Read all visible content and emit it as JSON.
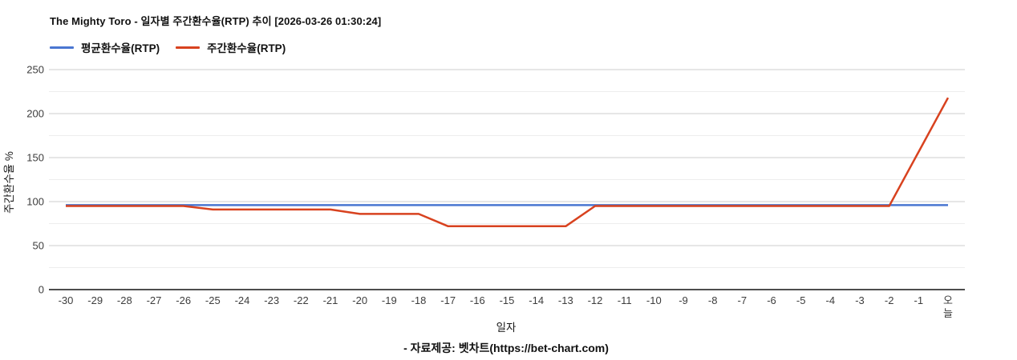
{
  "header": {
    "title": "The Mighty Toro - 일자별 주간환수율(RTP) 추이 [2026-03-26 01:30:24]"
  },
  "footer": {
    "text": "- 자료제공: 벳차트(https://bet-chart.com)"
  },
  "colors": {
    "average_line": "#4a76d1",
    "weekly_line": "#d8421f",
    "grid_major": "#cccccc",
    "grid_minor": "#ededed",
    "axis_line": "#4d4d4d",
    "tick_text": "#3d3d3d"
  },
  "chart_data": {
    "type": "line",
    "title": "The Mighty Toro - 일자별 주간환수율(RTP) 추이 [2026-03-26 01:30:24]",
    "xlabel": "일자",
    "ylabel": "주간환수율 %",
    "legend_position": "top-left",
    "grid": true,
    "ylim": [
      0,
      250
    ],
    "yticks": [
      0,
      50,
      100,
      150,
      200,
      250
    ],
    "yticks_minor": [
      25,
      75,
      125,
      175,
      225
    ],
    "x": [
      "-30",
      "-29",
      "-28",
      "-27",
      "-26",
      "-25",
      "-24",
      "-23",
      "-22",
      "-21",
      "-20",
      "-19",
      "-18",
      "-17",
      "-16",
      "-15",
      "-14",
      "-13",
      "-12",
      "-11",
      "-10",
      "-9",
      "-8",
      "-7",
      "-6",
      "-5",
      "-4",
      "-3",
      "-2",
      "-1",
      "오늘"
    ],
    "series": [
      {
        "name": "평균환수율(RTP)",
        "color": "#4a76d1",
        "values": [
          96,
          96,
          96,
          96,
          96,
          96,
          96,
          96,
          96,
          96,
          96,
          96,
          96,
          96,
          96,
          96,
          96,
          96,
          96,
          96,
          96,
          96,
          96,
          96,
          96,
          96,
          96,
          96,
          96,
          96,
          96
        ]
      },
      {
        "name": "주간환수율(RTP)",
        "color": "#d8421f",
        "values": [
          95,
          95,
          95,
          95,
          95,
          91,
          91,
          91,
          91,
          91,
          86,
          86,
          86,
          72,
          72,
          72,
          72,
          72,
          95,
          95,
          95,
          95,
          95,
          95,
          95,
          95,
          95,
          95,
          95,
          156.5,
          218
        ]
      }
    ]
  }
}
